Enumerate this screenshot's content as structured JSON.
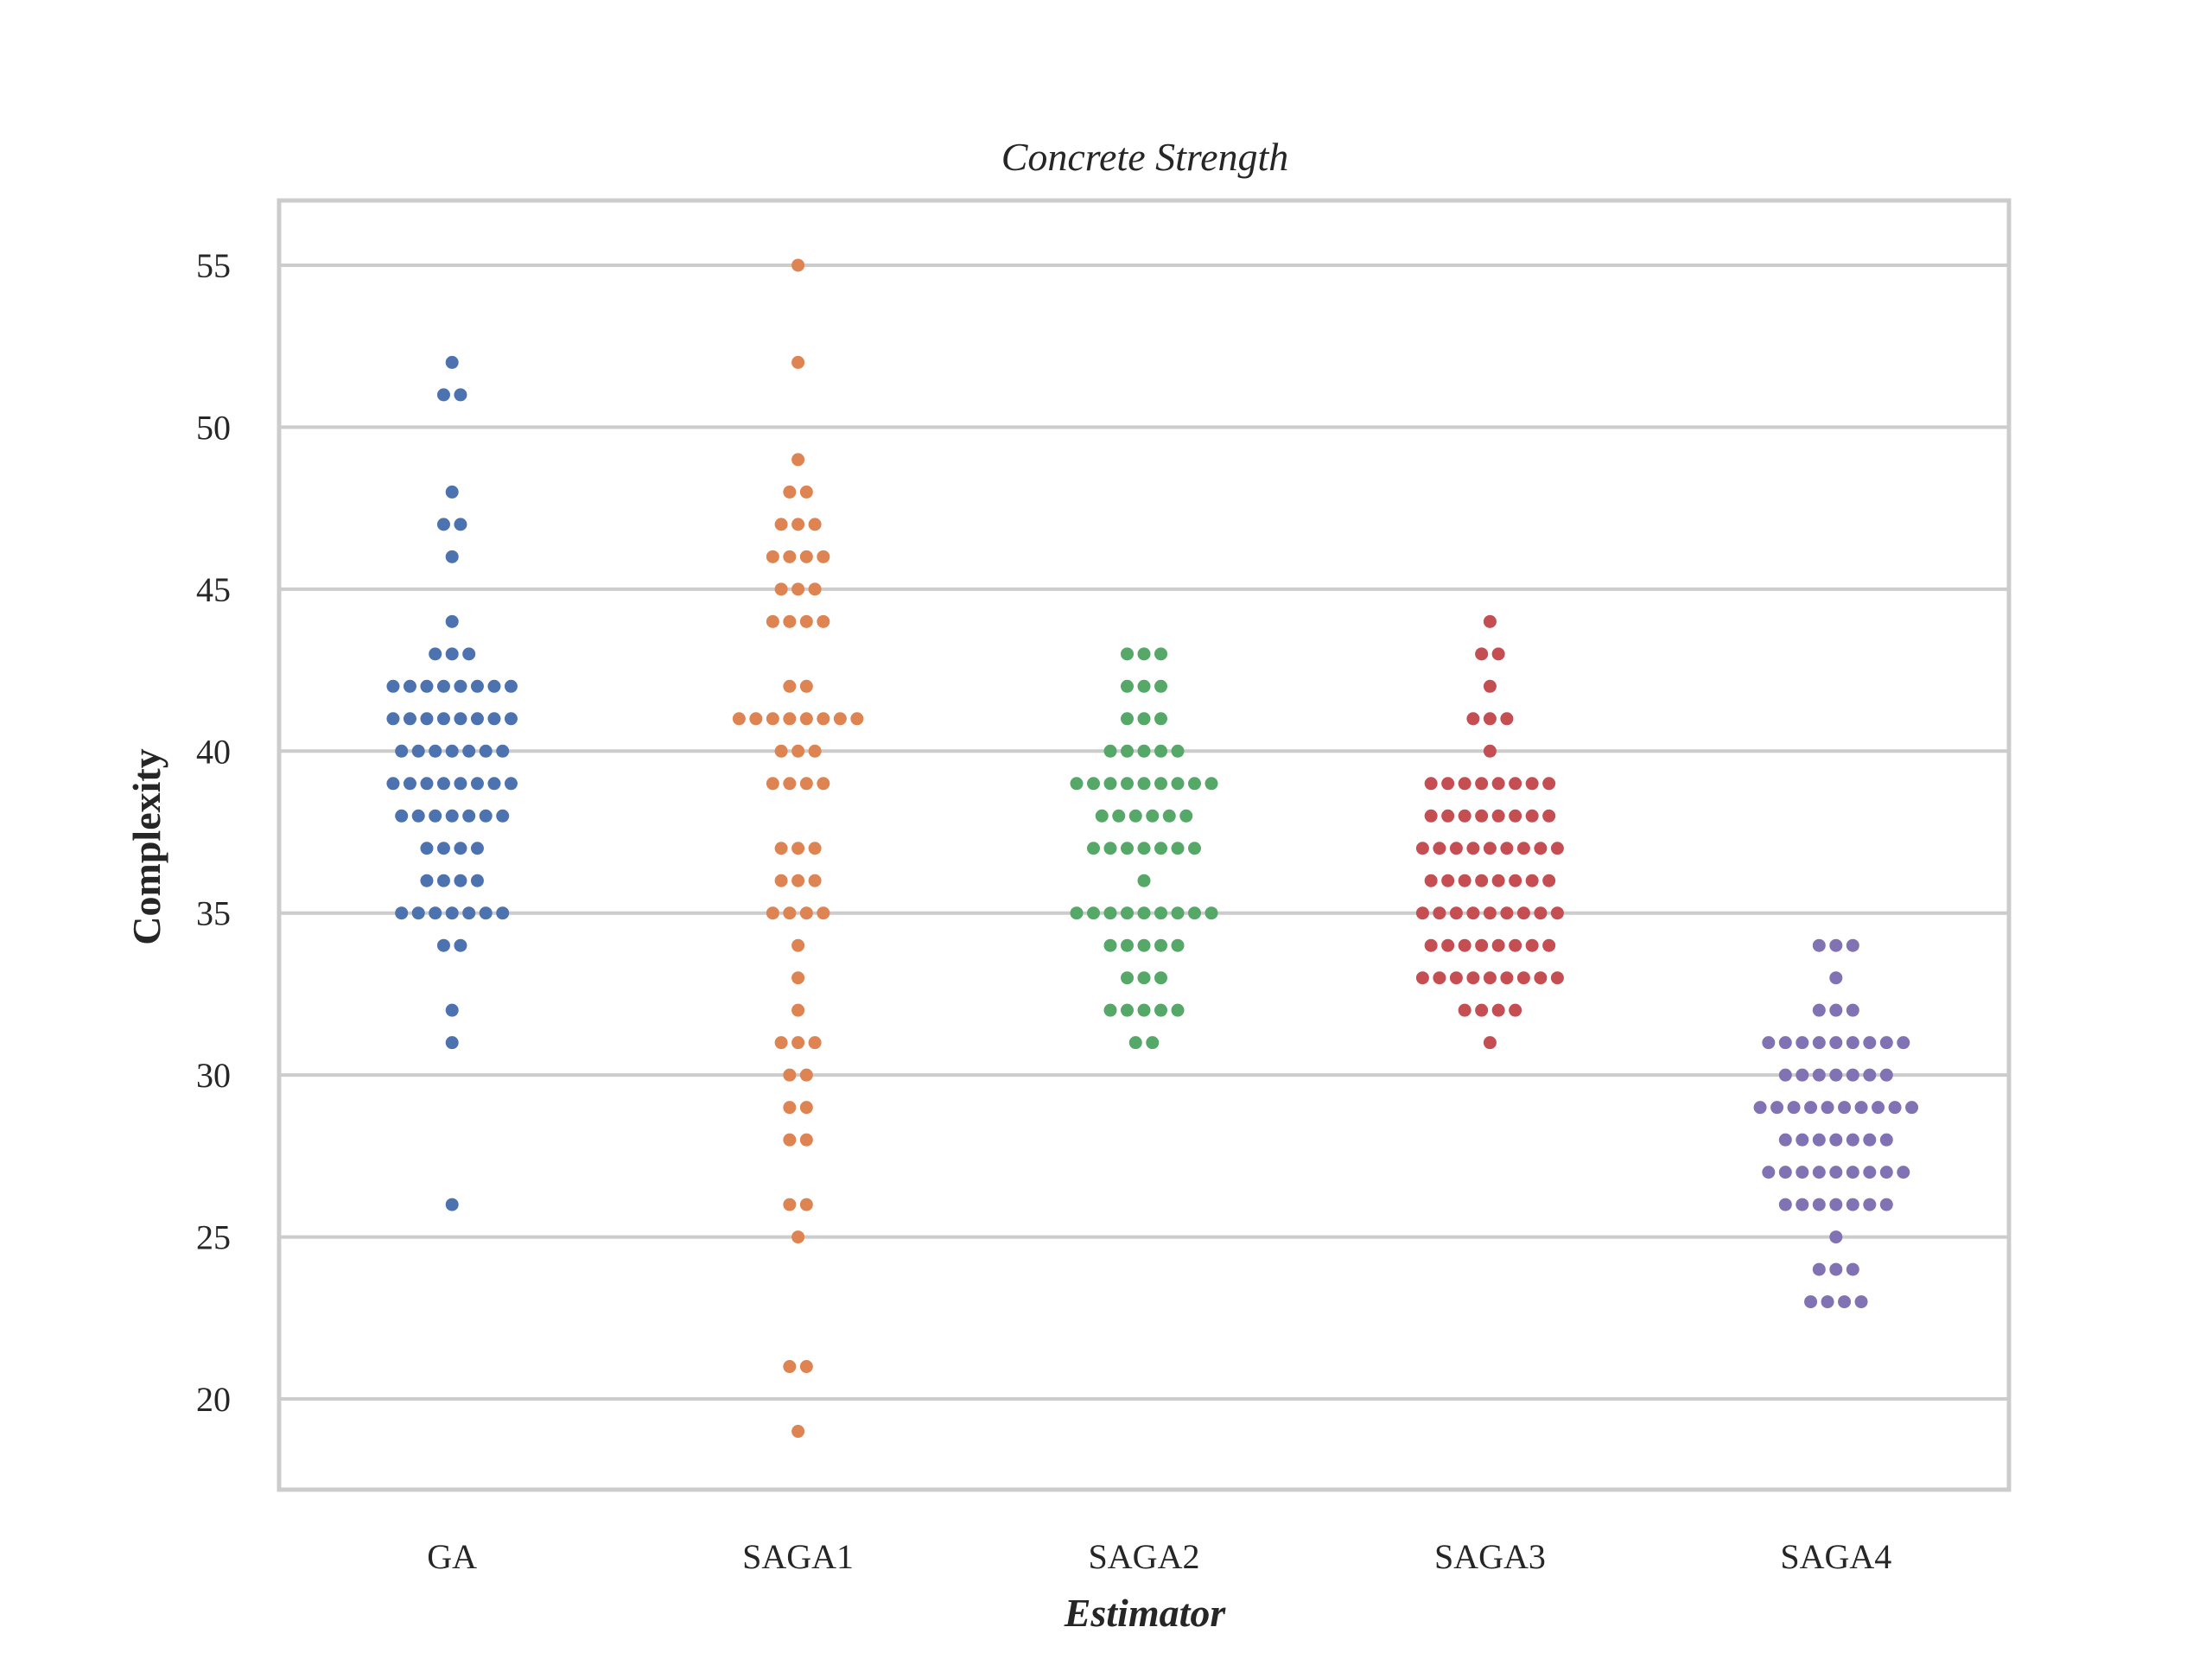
{
  "chart_data": {
    "type": "scatter",
    "subtype": "swarm",
    "title": "Concrete Strength",
    "xlabel": "Estimator",
    "ylabel": "Complexity",
    "categories": [
      "GA",
      "SAGA1",
      "SAGA2",
      "SAGA3",
      "SAGA4"
    ],
    "ylim": [
      17.2,
      57
    ],
    "yticks": [
      20,
      25,
      30,
      35,
      40,
      45,
      50,
      55
    ],
    "grid": "horizontal",
    "legend": "none",
    "series": [
      {
        "category": "GA",
        "color": "#4c72b0",
        "counts": {
          "26": 1,
          "31": 1,
          "32": 1,
          "34": 2,
          "35": 7,
          "36": 4,
          "37": 4,
          "38": 7,
          "39": 8,
          "40": 7,
          "41": 8,
          "42": 8,
          "43": 3,
          "44": 1,
          "46": 1,
          "47": 2,
          "48": 1,
          "51": 2,
          "52": 1
        }
      },
      {
        "category": "SAGA1",
        "color": "#dd8452",
        "counts": {
          "19": 1,
          "21": 2,
          "25": 1,
          "26": 2,
          "28": 2,
          "29": 2,
          "30": 2,
          "31": 3,
          "32": 1,
          "33": 1,
          "34": 1,
          "35": 4,
          "36": 3,
          "37": 3,
          "39": 4,
          "40": 3,
          "41": 8,
          "42": 2,
          "44": 4,
          "45": 3,
          "46": 4,
          "47": 3,
          "48": 2,
          "49": 1,
          "52": 1,
          "55": 1
        }
      },
      {
        "category": "SAGA2",
        "color": "#55a868",
        "counts": {
          "31": 2,
          "32": 5,
          "33": 3,
          "34": 5,
          "35": 9,
          "36": 1,
          "37": 7,
          "38": 6,
          "39": 9,
          "40": 5,
          "41": 3,
          "42": 3,
          "43": 3
        }
      },
      {
        "category": "SAGA3",
        "color": "#c44e52",
        "counts": {
          "31": 1,
          "32": 4,
          "33": 9,
          "34": 8,
          "35": 9,
          "36": 8,
          "37": 9,
          "38": 8,
          "39": 8,
          "40": 1,
          "41": 3,
          "42": 1,
          "43": 2,
          "44": 1
        }
      },
      {
        "category": "SAGA4",
        "color": "#8172b3",
        "counts": {
          "23": 4,
          "24": 3,
          "25": 1,
          "26": 7,
          "27": 9,
          "28": 7,
          "29": 10,
          "30": 7,
          "31": 9,
          "32": 3,
          "33": 1,
          "34": 3
        }
      }
    ]
  }
}
